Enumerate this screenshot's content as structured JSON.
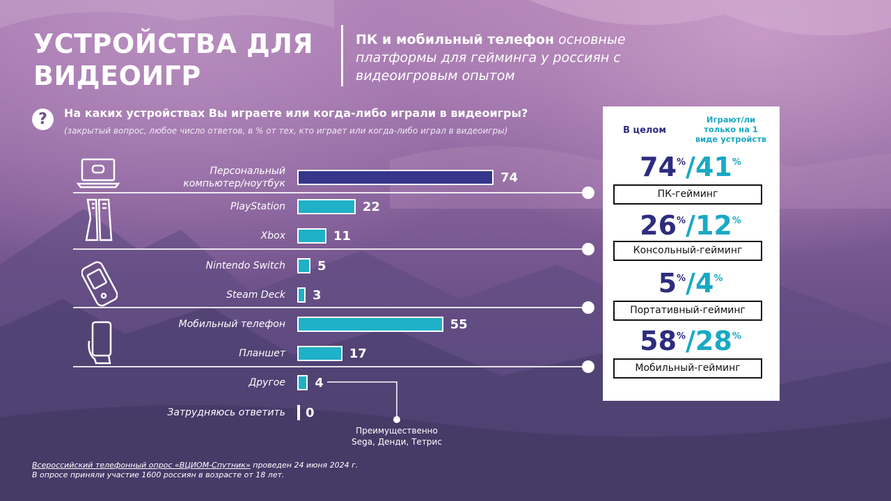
{
  "header": {
    "title_line1": "УСТРОЙСТВА ДЛЯ",
    "title_line2": "ВИДЕОИГР",
    "subtitle_bold": "ПК и мобильный телефон",
    "subtitle_rest": " основные платформы для гейминга у россиян с видеоигровым опытом"
  },
  "question": {
    "icon": "?",
    "text": "На каких устройствах Вы играете или когда-либо играли в видеоигры?",
    "note": "(закрытый вопрос, любое число ответов, в % от тех, кто играет или когда-либо играл в видеоигры)"
  },
  "chart_data": {
    "type": "bar",
    "orientation": "horizontal",
    "categories": [
      "Персональный компьютер/ноутбук",
      "PlayStation",
      "Xbox",
      "Nintendo Switch",
      "Steam Deck",
      "Мобильный телефон",
      "Планшет",
      "Другое",
      "Затрудняюсь ответить"
    ],
    "values": [
      74,
      22,
      11,
      5,
      3,
      55,
      17,
      4,
      0
    ],
    "highlight_color": "#35368a",
    "bar_color": "#1eb1c7",
    "groups": [
      {
        "icon": "laptop-icon",
        "categories": [
          "Персональный компьютер/ноутбук"
        ]
      },
      {
        "icon": "playstation-icon",
        "categories": [
          "PlayStation",
          "Xbox"
        ]
      },
      {
        "icon": "handheld-console-icon",
        "categories": [
          "Nintendo Switch",
          "Steam Deck"
        ]
      },
      {
        "icon": "smartphone-icon",
        "categories": [
          "Мобильный телефон",
          "Планшет"
        ]
      }
    ]
  },
  "callout": {
    "line1": "Преимущественно",
    "line2": "Sega, Денди, Тетрис"
  },
  "summary": {
    "header_total": "В целом",
    "header_single": "Играют/ли только на 1 виде устройств",
    "percent_sign": "%",
    "items": [
      {
        "total": "74",
        "single": "41",
        "label": "ПК-гейминг"
      },
      {
        "total": "26",
        "single": "12",
        "label": "Консольный-гейминг"
      },
      {
        "total": "5",
        "single": "4",
        "label": "Портативный-гейминг"
      },
      {
        "total": "58",
        "single": "28",
        "label": "Мобильный-гейминг"
      }
    ]
  },
  "footer": {
    "source": "Всероссийский телефонный опрос «ВЦИОМ-Спутник»",
    "date_text": " проведен 24 июня 2024 г.",
    "line2": "В опросе приняли участие 1600 россиян в возрасте от 18 лет."
  }
}
